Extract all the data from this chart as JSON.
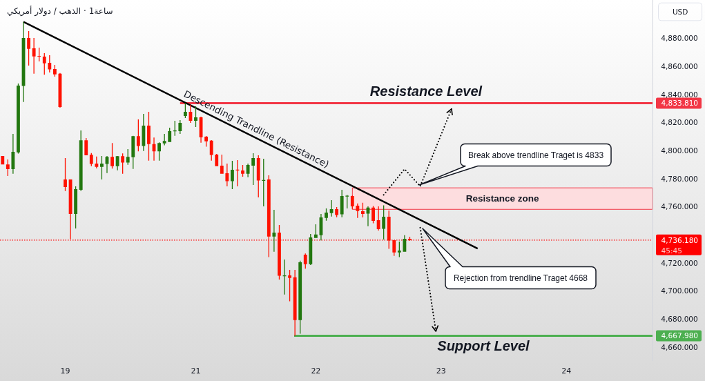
{
  "chart_data": {
    "type": "candlestick",
    "title": "الذهب / دولار أمريكي",
    "subtitle": "· 1ساعة",
    "ylabel": "USD",
    "categories": [
      null,
      null,
      null,
      null,
      null,
      null,
      null,
      null,
      null,
      null,
      null,
      null,
      "19",
      null,
      null,
      null,
      null,
      null,
      null,
      null,
      null,
      null,
      null,
      null,
      null,
      null,
      null,
      null,
      null,
      null,
      null,
      null,
      null,
      null,
      null,
      null,
      null,
      "21",
      null,
      null,
      null,
      null,
      null,
      null,
      null,
      null,
      null,
      null,
      null,
      null,
      null,
      null,
      null,
      null,
      null,
      null,
      null,
      null,
      null,
      null,
      "22",
      null,
      null,
      null,
      null,
      null,
      null,
      null,
      null,
      null,
      null,
      null,
      null,
      null,
      null,
      null,
      null,
      null,
      null,
      null,
      null,
      null,
      null,
      null,
      "23",
      null,
      null,
      null,
      null,
      null,
      null,
      null,
      null,
      null,
      null,
      null,
      null,
      null,
      null,
      null,
      null,
      null,
      null,
      null,
      null,
      null,
      null,
      null,
      "24",
      null,
      null,
      null,
      null,
      null,
      null,
      null,
      null,
      null,
      null,
      null,
      null,
      null,
      null,
      null,
      null
    ],
    "ohlc": [
      [
        4796.1,
        4796.1,
        4790.1,
        4790.1
      ],
      [
        4790.1,
        4793.7,
        4781.9,
        4786.8
      ],
      [
        4786.8,
        4811.9,
        4783.5,
        4799.1
      ],
      [
        4798.7,
        4847.8,
        4797.8,
        4846.3
      ],
      [
        4846.0,
        4891.7,
        4834.6,
        4880.2
      ],
      [
        4880.2,
        4885.2,
        4860.6,
        4872.5
      ],
      [
        4872.9,
        4880.2,
        4854.8,
        4867.1
      ],
      [
        4867.5,
        4873.4,
        4863.5,
        4867.1
      ],
      [
        4867.0,
        4869.4,
        4854.0,
        4862.2
      ],
      [
        4862.5,
        4867.9,
        4855.7,
        4857.8
      ],
      [
        4858.1,
        4861.1,
        4852.7,
        4854.3
      ],
      [
        4854.8,
        4855.3,
        4830.6,
        4831.1
      ],
      [
        4779.4,
        4794.7,
        4771.2,
        4774.0
      ],
      [
        4779.4,
        4779.4,
        4736.8,
        4754.8
      ],
      [
        4754.8,
        4774.5,
        4744.5,
        4772.5
      ],
      [
        4772.0,
        4814.3,
        4771.2,
        4807.3
      ],
      [
        4807.3,
        4808.9,
        4796.6,
        4796.6
      ],
      [
        4797.0,
        4798.2,
        4788.8,
        4790.4
      ],
      [
        4790.7,
        4795.8,
        4787.3,
        4788.4
      ],
      [
        4788.4,
        4796.1,
        4779.4,
        4790.7
      ],
      [
        4790.4,
        4796.1,
        4784.0,
        4795.5
      ],
      [
        4795.5,
        4805.3,
        4787.1,
        4788.9
      ],
      [
        4788.9,
        4796.1,
        4785.9,
        4796.0
      ],
      [
        4796.0,
        4797.9,
        4783.5,
        4791.4
      ],
      [
        4791.4,
        4801.0,
        4789.9,
        4795.5
      ],
      [
        4795.3,
        4810.5,
        4786.9,
        4810.2
      ],
      [
        4810.2,
        4822.2,
        4799.4,
        4803.2
      ],
      [
        4803.2,
        4826.1,
        4799.7,
        4817.8
      ],
      [
        4817.8,
        4827.6,
        4792.8,
        4804.6
      ],
      [
        4804.6,
        4809.3,
        4792.8,
        4799.4
      ],
      [
        4799.4,
        4805.8,
        4792.8,
        4805.3
      ],
      [
        4805.1,
        4811.9,
        4803.7,
        4806.8
      ],
      [
        4806.1,
        4816.3,
        4806.1,
        4813.8
      ],
      [
        4813.9,
        4821.2,
        4810.5,
        4814.3
      ],
      [
        4813.8,
        4821.7,
        4811.9,
        4819.7
      ],
      [
        4824.7,
        4833.81,
        4823.2,
        4827.6
      ],
      [
        4827.6,
        4832.7,
        4819.7,
        4821.2
      ],
      [
        4821.2,
        4831.5,
        4816.8,
        4823.7
      ],
      [
        4823.7,
        4824.2,
        4805.6,
        4809.4
      ],
      [
        4809.9,
        4810.4,
        4802.7,
        4806.6
      ],
      [
        4807.0,
        4807.4,
        4792.8,
        4796.8
      ],
      [
        4797.1,
        4797.6,
        4788.9,
        4788.9
      ],
      [
        4789.2,
        4797.1,
        4783.5,
        4783.5
      ],
      [
        4783.8,
        4790.7,
        4774.5,
        4778.1
      ],
      [
        4778.1,
        4792.7,
        4772.5,
        4786.3
      ],
      [
        4786.4,
        4793.2,
        4774.5,
        4786.1
      ],
      [
        4785.8,
        4789.7,
        4781.4,
        4783.5
      ],
      [
        4783.5,
        4790.7,
        4781.0,
        4789.7
      ],
      [
        4789.2,
        4798.1,
        4775.5,
        4794.7
      ],
      [
        4794.7,
        4796.6,
        4766.6,
        4778.6
      ],
      [
        4778.6,
        4794.2,
        4760.2,
        4779.0
      ],
      [
        4779.4,
        4782.4,
        4724.0,
        4738.7
      ],
      [
        4738.7,
        4757.8,
        4727.9,
        4741.5
      ],
      [
        4741.5,
        4746.9,
        4708.1,
        4710.7
      ],
      [
        4710.7,
        4722.3,
        4697.4,
        4711.0
      ],
      [
        4711.0,
        4715.0,
        4692.5,
        4709.2
      ],
      [
        4709.6,
        4715.0,
        4667.98,
        4679.2
      ],
      [
        4679.2,
        4721.4,
        4669.4,
        4720.4
      ],
      [
        4725.8,
        4726.6,
        4715.8,
        4719.0
      ],
      [
        4719.0,
        4740.5,
        4718.4,
        4738.1
      ],
      [
        4737.7,
        4747.4,
        4737.7,
        4740.1
      ],
      [
        4739.7,
        4754.8,
        4736.0,
        4752.3
      ],
      [
        4751.9,
        4758.7,
        4750.0,
        4755.8
      ],
      [
        4755.4,
        4764.6,
        4753.0,
        4758.2
      ],
      [
        4758.2,
        4759.7,
        4752.5,
        4754.0
      ],
      [
        4754.5,
        4772.0,
        4752.5,
        4767.6
      ],
      [
        4767.4,
        4768.3,
        4758.7,
        4767.8
      ],
      [
        4767.6,
        4768.0,
        4758.4,
        4760.2
      ],
      [
        4760.7,
        4762.3,
        4751.9,
        4756.9
      ],
      [
        4756.8,
        4762.8,
        4752.3,
        4754.8
      ],
      [
        4755.0,
        4760.2,
        4746.0,
        4759.4
      ],
      [
        4759.4,
        4760.4,
        4748.1,
        4749.9
      ],
      [
        4750.4,
        4760.2,
        4743.0,
        4744.0
      ],
      [
        4744.2,
        4760.9,
        4736.6,
        4752.8
      ],
      [
        4752.8,
        4757.3,
        4729.9,
        4735.8
      ],
      [
        4736.1,
        4736.1,
        4724.9,
        4727.4
      ],
      [
        4727.4,
        4735.1,
        4724.0,
        4728.7
      ],
      [
        4727.9,
        4739.6,
        4727.9,
        4737.1
      ],
      [
        4737.1,
        4738.5,
        4735.7,
        4736.18
      ],
      null,
      null,
      null,
      null,
      null,
      null,
      null,
      null,
      null,
      null,
      null,
      null,
      null,
      null,
      null,
      null,
      null,
      null,
      null,
      null,
      null,
      null,
      null,
      null,
      null,
      null,
      null,
      null,
      null,
      null,
      null,
      null,
      null,
      null,
      null,
      null,
      null,
      null,
      null,
      null,
      null,
      null,
      null,
      null,
      null,
      null
    ],
    "colors": [
      "#ff1100",
      "#ff1100",
      "#22770f",
      "#22770f",
      "#22770f",
      "#ff1100",
      "#ff1100",
      "#ff1100",
      "#ff1100",
      "#ff1100",
      "#ff1100",
      "#ff1100",
      "#ff1100",
      "#ff1100",
      "#22770f",
      "#22770f",
      "#ff1100",
      "#ff1100",
      "#ff1100",
      "#22770f",
      "#22770f",
      "#ff1100",
      "#22770f",
      "#ff1100",
      "#22770f",
      "#22770f",
      "#ff1100",
      "#22770f",
      "#ff1100",
      "#ff1100",
      "#22770f",
      "#22770f",
      "#22770f",
      "#22770f",
      "#22770f",
      "#22770f",
      "#ff1100",
      "#22770f",
      "#ff1100",
      "#ff1100",
      "#ff1100",
      "#ff1100",
      "#ff1100",
      "#ff1100",
      "#22770f",
      "#ff1100",
      "#ff1100",
      "#22770f",
      "#22770f",
      "#ff1100",
      "#22770f",
      "#ff1100",
      "#22770f",
      "#ff1100",
      "#22770f",
      "#ff1100",
      "#ff1100",
      "#22770f",
      "#ff1100",
      "#22770f",
      "#22770f",
      "#22770f",
      "#22770f",
      "#22770f",
      "#ff1100",
      "#22770f",
      "#22770f",
      "#ff1100",
      "#ff1100",
      "#ff1100",
      "#22770f",
      "#ff1100",
      "#ff1100",
      "#22770f",
      "#ff1100",
      "#ff1100",
      "#22770f",
      "#22770f",
      "#ff1100",
      null,
      null,
      null,
      null,
      null,
      null,
      null,
      null,
      null,
      null,
      null,
      null,
      null,
      null,
      null,
      null,
      null,
      null,
      null,
      null,
      null,
      null,
      null,
      null,
      null,
      null,
      null,
      null,
      null,
      null,
      null,
      null,
      null,
      null,
      null,
      null,
      null,
      null,
      null,
      null,
      null,
      null,
      null,
      null,
      null,
      null
    ],
    "series": [
      {
        "type": "line",
        "name": "Descending Trandline (Resistance)",
        "color": "#000000",
        "line_style": "solid",
        "values": [
          null,
          null,
          null,
          null,
          4891.7,
          null,
          null,
          null,
          null,
          null,
          null,
          null,
          null,
          null,
          null,
          null,
          null,
          null,
          null,
          null,
          null,
          null,
          null,
          null,
          null,
          null,
          null,
          null,
          null,
          null,
          null,
          null,
          null,
          null,
          null,
          null,
          null,
          null,
          null,
          null,
          null,
          null,
          null,
          null,
          null,
          null,
          null,
          null,
          null,
          null,
          null,
          null,
          null,
          null,
          null,
          null,
          null,
          null,
          null,
          null,
          null,
          null,
          null,
          null,
          null,
          null,
          null,
          null,
          null,
          null,
          null,
          null,
          null,
          null,
          null,
          null,
          null,
          null,
          null,
          null,
          null,
          null,
          null,
          null,
          null,
          null,
          null,
          null,
          null,
          null,
          null,
          4730.1,
          null,
          null,
          null,
          null,
          null,
          null,
          null,
          null,
          null,
          null,
          null,
          null,
          null,
          null,
          null,
          null,
          null,
          null,
          null,
          null,
          null,
          null,
          null,
          null,
          null,
          null,
          null,
          null,
          null,
          null,
          null,
          null,
          null
        ]
      },
      {
        "type": "line",
        "color": "#000000",
        "line_style": "dotted",
        "values": [
          null,
          null,
          null,
          null,
          null,
          null,
          null,
          null,
          null,
          null,
          null,
          null,
          null,
          null,
          null,
          null,
          null,
          null,
          null,
          null,
          null,
          null,
          null,
          null,
          null,
          null,
          null,
          null,
          null,
          null,
          null,
          null,
          null,
          null,
          null,
          null,
          null,
          null,
          null,
          null,
          null,
          null,
          null,
          null,
          null,
          null,
          null,
          null,
          null,
          null,
          null,
          null,
          null,
          null,
          null,
          null,
          null,
          null,
          null,
          null,
          null,
          null,
          null,
          null,
          null,
          null,
          null,
          null,
          null,
          null,
          null,
          null,
          null,
          4768.4,
          null,
          null,
          null,
          4786.8,
          null,
          null,
          4774.5,
          null,
          null,
          null,
          null,
          null,
          4829.6,
          null,
          null,
          null,
          null,
          null,
          null,
          null,
          null,
          null,
          null,
          null,
          null,
          null,
          null,
          null,
          null,
          null,
          null,
          null,
          null,
          null,
          null,
          null,
          null,
          null,
          null,
          null,
          null,
          null,
          null,
          null,
          null,
          null,
          null,
          null,
          null,
          null,
          null
        ]
      },
      {
        "type": "line",
        "color": "#000000",
        "line_style": "dotted",
        "values": [
          null,
          null,
          null,
          null,
          null,
          null,
          null,
          null,
          null,
          null,
          null,
          null,
          null,
          null,
          null,
          null,
          null,
          null,
          null,
          null,
          null,
          null,
          null,
          null,
          null,
          null,
          null,
          null,
          null,
          null,
          null,
          null,
          null,
          null,
          null,
          null,
          null,
          null,
          null,
          null,
          null,
          null,
          null,
          null,
          null,
          null,
          null,
          null,
          null,
          null,
          null,
          null,
          null,
          null,
          null,
          null,
          null,
          null,
          null,
          null,
          null,
          null,
          null,
          null,
          null,
          null,
          null,
          null,
          null,
          null,
          null,
          null,
          null,
          null,
          null,
          null,
          null,
          null,
          null,
          null,
          4745.0,
          null,
          null,
          4671.2,
          null,
          null,
          null,
          null,
          null,
          null,
          null,
          null,
          null,
          null,
          null,
          null,
          null,
          null,
          null,
          null,
          null,
          null,
          null,
          null,
          null,
          null,
          null,
          null,
          null,
          null,
          null,
          null,
          null,
          null,
          null,
          null,
          null,
          null,
          null,
          null,
          null,
          null,
          null,
          null,
          null
        ]
      }
    ],
    "ylim": [
      4650,
      4907.3
    ],
    "yticks": [
      {
        "value": 4660,
        "label": "4,660.000"
      },
      {
        "value": 4680,
        "label": "4,680.000"
      },
      {
        "value": 4700,
        "label": "4,700.000"
      },
      {
        "value": 4720,
        "label": "4,720.000"
      },
      {
        "value": 4760,
        "label": "4,760.000"
      },
      {
        "value": 4780,
        "label": "4,780.000"
      },
      {
        "value": 4800,
        "label": "4,800.000"
      },
      {
        "value": 4820,
        "label": "4,820.000"
      },
      {
        "value": 4840,
        "label": "4,840.000"
      },
      {
        "value": 4860,
        "label": "4,860.000"
      },
      {
        "value": 4880,
        "label": "4,880.000"
      }
    ],
    "ref_lines": [
      {
        "axis": "y",
        "value": 4833.81,
        "label": "4,833.810",
        "color": "#f23645"
      },
      {
        "axis": "y",
        "value": 4667.98,
        "label": "4,667.980",
        "color": "#4caf50"
      },
      {
        "axis": "y",
        "value": 4736.18,
        "label": "4,736.180",
        "color": "#ff0000",
        "line_style": "dotted"
      }
    ],
    "bands": [
      {
        "axis": "y",
        "from": 4758.1,
        "to": 4773.4,
        "label": "Resistance zone",
        "color": "#f23645"
      }
    ],
    "annotations": [
      "Break above trendline Traget is 4833",
      "Rejection from trendline Traget 4668",
      "45:45",
      {
        "text": "Resistance Level",
        "y": 4833.81
      },
      {
        "text": "Support Level",
        "y": 4667.98
      }
    ]
  }
}
